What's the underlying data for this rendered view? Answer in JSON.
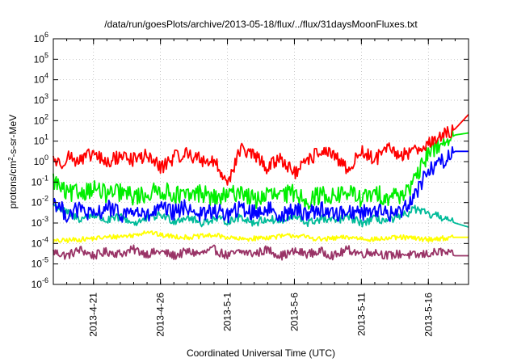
{
  "chart_data": {
    "type": "line",
    "title": "/data/run/goesPlots/archive/2013-05-18/flux/../flux/31daysMoonFluxes.txt",
    "xlabel": "Coordinated Universal Time (UTC)",
    "ylabel": {
      "base": "protons/cm",
      "sup": "2",
      "rest": "-s-sr-MeV"
    },
    "x_range_days_since_2013_04_18": [
      0,
      31
    ],
    "x_ticks": [
      {
        "day": 3,
        "label": "2013-4-21"
      },
      {
        "day": 8,
        "label": "2013-4-26"
      },
      {
        "day": 13,
        "label": "2013-5-1"
      },
      {
        "day": 18,
        "label": "2013-5-6"
      },
      {
        "day": 23,
        "label": "2013-5-11"
      },
      {
        "day": 28,
        "label": "2013-5-16"
      }
    ],
    "y_scale": "log10",
    "y_exp_range": [
      -6,
      6
    ],
    "y_ticks": [
      {
        "exp": -6,
        "base": "10",
        "sup": "-6"
      },
      {
        "exp": -5,
        "base": "10",
        "sup": "-5"
      },
      {
        "exp": -4,
        "base": "10",
        "sup": "-4"
      },
      {
        "exp": -3,
        "base": "10",
        "sup": "-3"
      },
      {
        "exp": -2,
        "base": "10",
        "sup": "-2"
      },
      {
        "exp": -1,
        "base": "10",
        "sup": "-1"
      },
      {
        "exp": 0,
        "base": "10",
        "sup": "0"
      },
      {
        "exp": 1,
        "base": "10",
        "sup": "1"
      },
      {
        "exp": 2,
        "base": "10",
        "sup": "2"
      },
      {
        "exp": 3,
        "base": "10",
        "sup": "3"
      },
      {
        "exp": 4,
        "base": "10",
        "sup": "4"
      },
      {
        "exp": 5,
        "base": "10",
        "sup": "5"
      },
      {
        "exp": 6,
        "base": "10",
        "sup": "6"
      }
    ],
    "grid": true,
    "series": [
      {
        "name": "red",
        "color": "#ff0000",
        "points": [
          [
            0,
            0.2
          ],
          [
            0.5,
            -0.2
          ],
          [
            1,
            0.3
          ],
          [
            2,
            0.0
          ],
          [
            3,
            0.4
          ],
          [
            4,
            -0.1
          ],
          [
            5,
            0.3
          ],
          [
            6,
            0.1
          ],
          [
            7,
            0.3
          ],
          [
            8,
            -0.3
          ],
          [
            9,
            0.2
          ],
          [
            10,
            0.4
          ],
          [
            11,
            0.1
          ],
          [
            12,
            0.0
          ],
          [
            13,
            -1.0
          ],
          [
            14,
            0.6
          ],
          [
            15,
            0.3
          ],
          [
            16,
            -0.3
          ],
          [
            17,
            0.2
          ],
          [
            18,
            -0.6
          ],
          [
            19,
            0.0
          ],
          [
            20,
            0.6
          ],
          [
            21,
            0.2
          ],
          [
            22,
            -0.4
          ],
          [
            23,
            0.5
          ],
          [
            24,
            0.1
          ],
          [
            25,
            0.6
          ],
          [
            26,
            0.3
          ],
          [
            27,
            0.6
          ],
          [
            28,
            0.9
          ],
          [
            29,
            1.2
          ],
          [
            30,
            1.6
          ],
          [
            31,
            2.3
          ]
        ]
      },
      {
        "name": "green",
        "color": "#00ee00",
        "points": [
          [
            0,
            -0.9
          ],
          [
            1,
            -1.6
          ],
          [
            2,
            -1.5
          ],
          [
            3,
            -1.3
          ],
          [
            4,
            -1.6
          ],
          [
            5,
            -1.5
          ],
          [
            6,
            -1.7
          ],
          [
            7,
            -1.6
          ],
          [
            8,
            -1.4
          ],
          [
            9,
            -1.6
          ],
          [
            10,
            -1.7
          ],
          [
            11,
            -1.5
          ],
          [
            12,
            -1.8
          ],
          [
            13,
            -1.7
          ],
          [
            14,
            -1.4
          ],
          [
            15,
            -1.9
          ],
          [
            16,
            -1.6
          ],
          [
            17,
            -1.7
          ],
          [
            18,
            -1.5
          ],
          [
            19,
            -1.9
          ],
          [
            20,
            -1.6
          ],
          [
            21,
            -1.7
          ],
          [
            22,
            -1.5
          ],
          [
            23,
            -1.8
          ],
          [
            24,
            -1.6
          ],
          [
            25,
            -1.7
          ],
          [
            26,
            -1.6
          ],
          [
            27,
            -1.0
          ],
          [
            28,
            0.5
          ],
          [
            29,
            0.9
          ],
          [
            30,
            1.3
          ],
          [
            31,
            1.4
          ]
        ]
      },
      {
        "name": "blue",
        "color": "#0000ff",
        "points": [
          [
            0,
            -1.9
          ],
          [
            1,
            -2.6
          ],
          [
            2,
            -2.3
          ],
          [
            3,
            -2.7
          ],
          [
            4,
            -2.2
          ],
          [
            5,
            -2.6
          ],
          [
            6,
            -2.4
          ],
          [
            7,
            -2.7
          ],
          [
            8,
            -2.3
          ],
          [
            9,
            -2.5
          ],
          [
            10,
            -2.2
          ],
          [
            11,
            -2.6
          ],
          [
            12,
            -2.4
          ],
          [
            13,
            -2.6
          ],
          [
            14,
            -2.3
          ],
          [
            15,
            -2.5
          ],
          [
            16,
            -2.3
          ],
          [
            17,
            -2.6
          ],
          [
            18,
            -2.4
          ],
          [
            19,
            -2.5
          ],
          [
            20,
            -2.3
          ],
          [
            21,
            -2.6
          ],
          [
            22,
            -2.4
          ],
          [
            23,
            -2.5
          ],
          [
            24,
            -2.3
          ],
          [
            25,
            -2.6
          ],
          [
            26,
            -2.4
          ],
          [
            27,
            -1.6
          ],
          [
            28,
            -0.4
          ],
          [
            29,
            0.0
          ],
          [
            30,
            0.5
          ],
          [
            31,
            0.5
          ]
        ]
      },
      {
        "name": "teal",
        "color": "#00bb99",
        "points": [
          [
            0,
            -2.1
          ],
          [
            1,
            -2.5
          ],
          [
            2,
            -2.8
          ],
          [
            3,
            -2.6
          ],
          [
            4,
            -2.9
          ],
          [
            5,
            -2.7
          ],
          [
            6,
            -3.0
          ],
          [
            7,
            -2.8
          ],
          [
            8,
            -2.6
          ],
          [
            9,
            -2.9
          ],
          [
            10,
            -2.7
          ],
          [
            11,
            -3.0
          ],
          [
            12,
            -2.8
          ],
          [
            13,
            -2.9
          ],
          [
            14,
            -2.7
          ],
          [
            15,
            -3.0
          ],
          [
            16,
            -2.8
          ],
          [
            17,
            -2.9
          ],
          [
            18,
            -2.7
          ],
          [
            19,
            -3.0
          ],
          [
            20,
            -2.8
          ],
          [
            21,
            -2.9
          ],
          [
            22,
            -2.7
          ],
          [
            23,
            -3.0
          ],
          [
            24,
            -2.8
          ],
          [
            25,
            -2.9
          ],
          [
            26,
            -2.7
          ],
          [
            27,
            -2.3
          ],
          [
            28,
            -2.6
          ],
          [
            29,
            -2.7
          ],
          [
            30,
            -3.0
          ],
          [
            31,
            -3.2
          ]
        ]
      },
      {
        "name": "yellow",
        "color": "#ffff00",
        "points": [
          [
            0,
            -3.9
          ],
          [
            2,
            -3.8
          ],
          [
            4,
            -3.7
          ],
          [
            6,
            -3.6
          ],
          [
            7,
            -3.4
          ],
          [
            8,
            -3.6
          ],
          [
            10,
            -3.7
          ],
          [
            12,
            -3.6
          ],
          [
            14,
            -3.8
          ],
          [
            16,
            -3.7
          ],
          [
            18,
            -3.6
          ],
          [
            20,
            -3.8
          ],
          [
            22,
            -3.7
          ],
          [
            24,
            -3.8
          ],
          [
            26,
            -3.7
          ],
          [
            28,
            -3.8
          ],
          [
            30,
            -3.7
          ],
          [
            31,
            -3.7
          ]
        ]
      },
      {
        "name": "purple",
        "color": "#993366",
        "points": [
          [
            0,
            -4.4
          ],
          [
            1,
            -4.6
          ],
          [
            2,
            -4.3
          ],
          [
            3,
            -4.6
          ],
          [
            4,
            -4.4
          ],
          [
            5,
            -4.5
          ],
          [
            6,
            -4.3
          ],
          [
            7,
            -4.5
          ],
          [
            8,
            -4.4
          ],
          [
            9,
            -4.6
          ],
          [
            10,
            -4.4
          ],
          [
            11,
            -4.5
          ],
          [
            12,
            -4.3
          ],
          [
            13,
            -4.6
          ],
          [
            14,
            -4.4
          ],
          [
            15,
            -4.5
          ],
          [
            16,
            -4.3
          ],
          [
            17,
            -4.6
          ],
          [
            18,
            -4.4
          ],
          [
            19,
            -4.5
          ],
          [
            20,
            -4.4
          ],
          [
            21,
            -4.6
          ],
          [
            22,
            -4.3
          ],
          [
            23,
            -4.5
          ],
          [
            24,
            -4.4
          ],
          [
            25,
            -4.6
          ],
          [
            26,
            -4.5
          ],
          [
            27,
            -4.6
          ],
          [
            28,
            -4.5
          ],
          [
            29,
            -4.4
          ],
          [
            30,
            -4.6
          ],
          [
            31,
            -4.6
          ]
        ]
      }
    ]
  }
}
